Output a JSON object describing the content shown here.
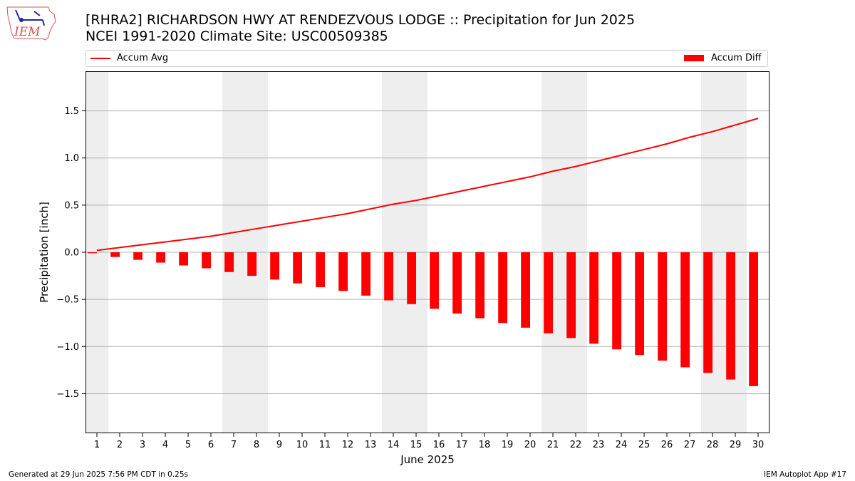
{
  "header": {
    "title_line1": "[RHRA2] RICHARDSON HWY AT RENDEZVOUS LODGE :: Precipitation for Jun 2025",
    "title_line2": "NCEI 1991-2020 Climate Site: USC00509385",
    "logo_text": "IEM"
  },
  "footer": {
    "generated": "Generated at 29 Jun 2025 7:56 PM CDT in 0.25s",
    "app": "IEM Autoplot App #17"
  },
  "colors": {
    "series": "#ff0000",
    "weekend_shading": "#eeeeee",
    "grid": "#b0b0b0"
  },
  "chart_data": {
    "type": "bar",
    "title": "[RHRA2] RICHARDSON HWY AT RENDEZVOUS LODGE :: Precipitation for Jun 2025",
    "subtitle": "NCEI 1991-2020 Climate Site: USC00509385",
    "xlabel": "June 2025",
    "ylabel": "Precipitation [inch]",
    "categories": [
      "1",
      "2",
      "3",
      "4",
      "5",
      "6",
      "7",
      "8",
      "9",
      "10",
      "11",
      "12",
      "13",
      "14",
      "15",
      "16",
      "17",
      "18",
      "19",
      "20",
      "21",
      "22",
      "23",
      "24",
      "25",
      "26",
      "27",
      "28",
      "29",
      "30"
    ],
    "ylim": [
      -1.92,
      1.92
    ],
    "yticks": [
      -1.5,
      -1.0,
      -0.5,
      0.0,
      0.5,
      1.0,
      1.5
    ],
    "ytick_labels": [
      "−1.5",
      "−1.0",
      "−0.5",
      "0.0",
      "0.5",
      "1.0",
      "1.5"
    ],
    "grid": true,
    "legend_placement": "top, above plot",
    "weekend_days": [
      1,
      7,
      8,
      14,
      15,
      21,
      22,
      28,
      29
    ],
    "series": [
      {
        "name": "Accum Avg",
        "type": "line",
        "values": [
          0.02,
          0.05,
          0.08,
          0.11,
          0.14,
          0.17,
          0.21,
          0.25,
          0.29,
          0.33,
          0.37,
          0.41,
          0.46,
          0.51,
          0.55,
          0.6,
          0.65,
          0.7,
          0.75,
          0.8,
          0.86,
          0.91,
          0.97,
          1.03,
          1.09,
          1.15,
          1.22,
          1.28,
          1.35,
          1.42
        ]
      },
      {
        "name": "Accum Diff",
        "type": "bar",
        "values": [
          -0.01,
          -0.05,
          -0.08,
          -0.11,
          -0.14,
          -0.17,
          -0.21,
          -0.25,
          -0.29,
          -0.33,
          -0.37,
          -0.41,
          -0.46,
          -0.51,
          -0.55,
          -0.6,
          -0.65,
          -0.7,
          -0.75,
          -0.8,
          -0.86,
          -0.91,
          -0.97,
          -1.03,
          -1.09,
          -1.15,
          -1.22,
          -1.28,
          -1.35,
          -1.42
        ]
      }
    ]
  }
}
